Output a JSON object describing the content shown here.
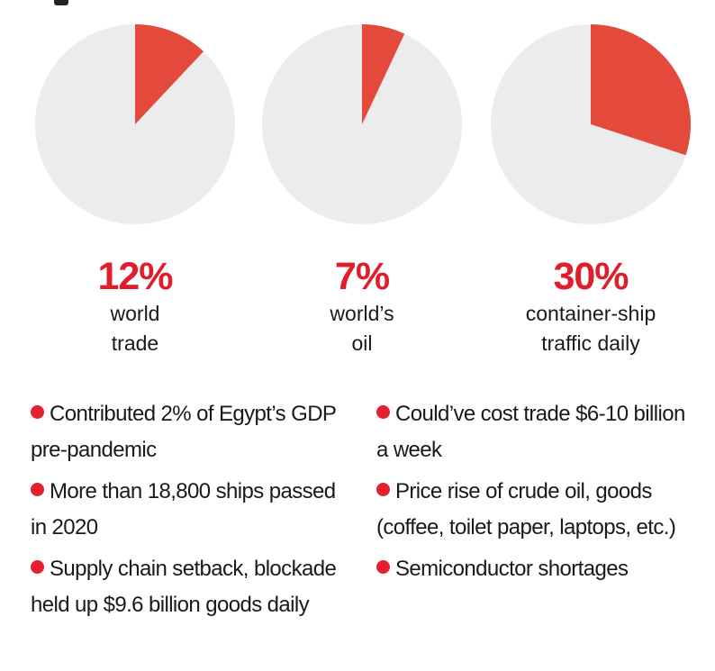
{
  "colors": {
    "accent": "#e34a3c",
    "pie_bg": "#ececec",
    "percent_text": "#e01e2b",
    "bullet": "#e4202e"
  },
  "chart_data": {
    "type": "pie",
    "charts": [
      {
        "percent_label": "12%",
        "value": 12,
        "label_lines": [
          "world",
          "trade"
        ]
      },
      {
        "percent_label": "7%",
        "value": 7,
        "label_lines": [
          "world’s",
          "oil"
        ]
      },
      {
        "percent_label": "30%",
        "value": 30,
        "label_lines": [
          "container-ship",
          "traffic daily"
        ]
      }
    ]
  },
  "bullets": {
    "left": [
      "Contributed 2% of Egypt’s GDP pre-pandemic",
      "More than 18,800 ships passed in 2020",
      "Supply chain setback, blockade held up $9.6 billion goods daily"
    ],
    "right": [
      "Could’ve cost trade $6-10 billion a week",
      "Price rise of crude oil, goods (coffee, toilet paper, laptops, etc.)",
      "Semiconductor shortages"
    ]
  }
}
